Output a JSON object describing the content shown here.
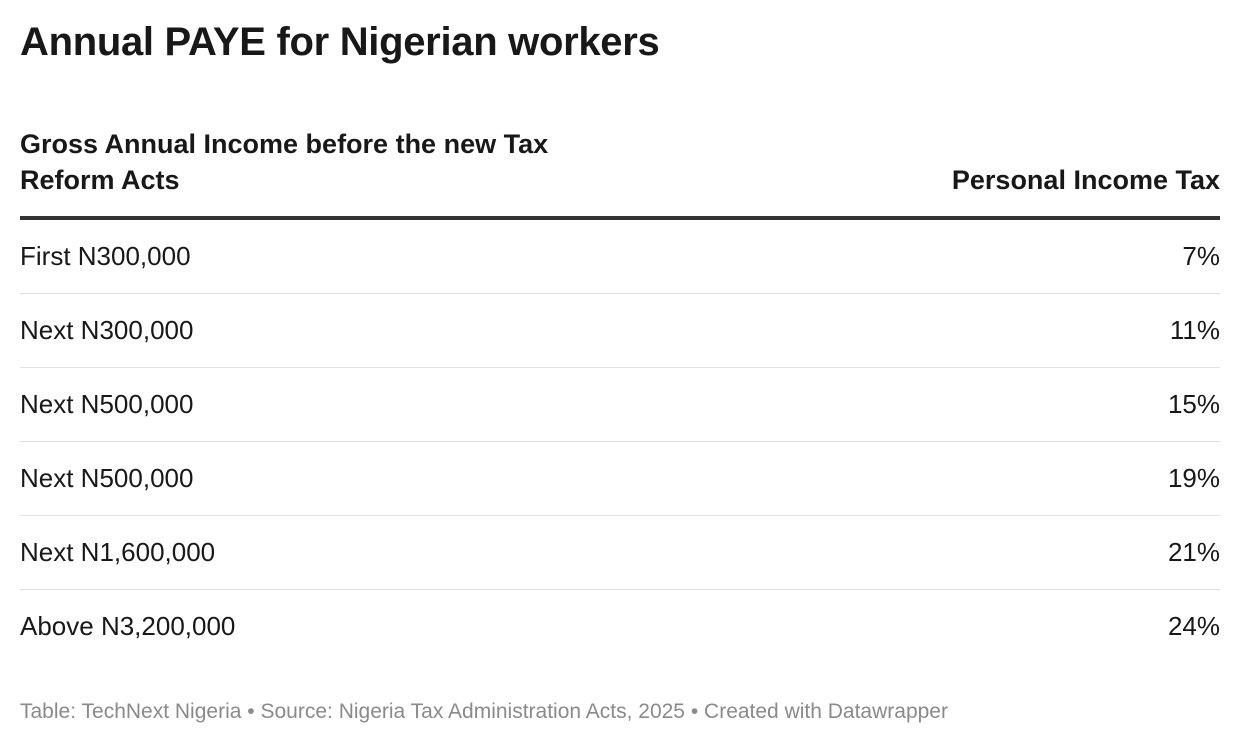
{
  "title": "Annual PAYE for Nigerian workers",
  "table": {
    "headers": [
      "Gross Annual Income before the new Tax Reform Acts",
      "Personal Income Tax"
    ],
    "rows": [
      {
        "income": "First N300,000",
        "tax": "7%"
      },
      {
        "income": "Next N300,000",
        "tax": "11%"
      },
      {
        "income": "Next N500,000",
        "tax": "15%"
      },
      {
        "income": "Next N500,000",
        "tax": "19%"
      },
      {
        "income": "Next N1,600,000",
        "tax": "21%"
      },
      {
        "income": "Above N3,200,000",
        "tax": "24%"
      }
    ]
  },
  "footer": {
    "table_label": "Table:",
    "author": "TechNext Nigeria",
    "separator": "•",
    "source_label": "Source:",
    "source": "Nigeria Tax Administration Acts, 2025",
    "created_with": "Created with Datawrapper"
  }
}
